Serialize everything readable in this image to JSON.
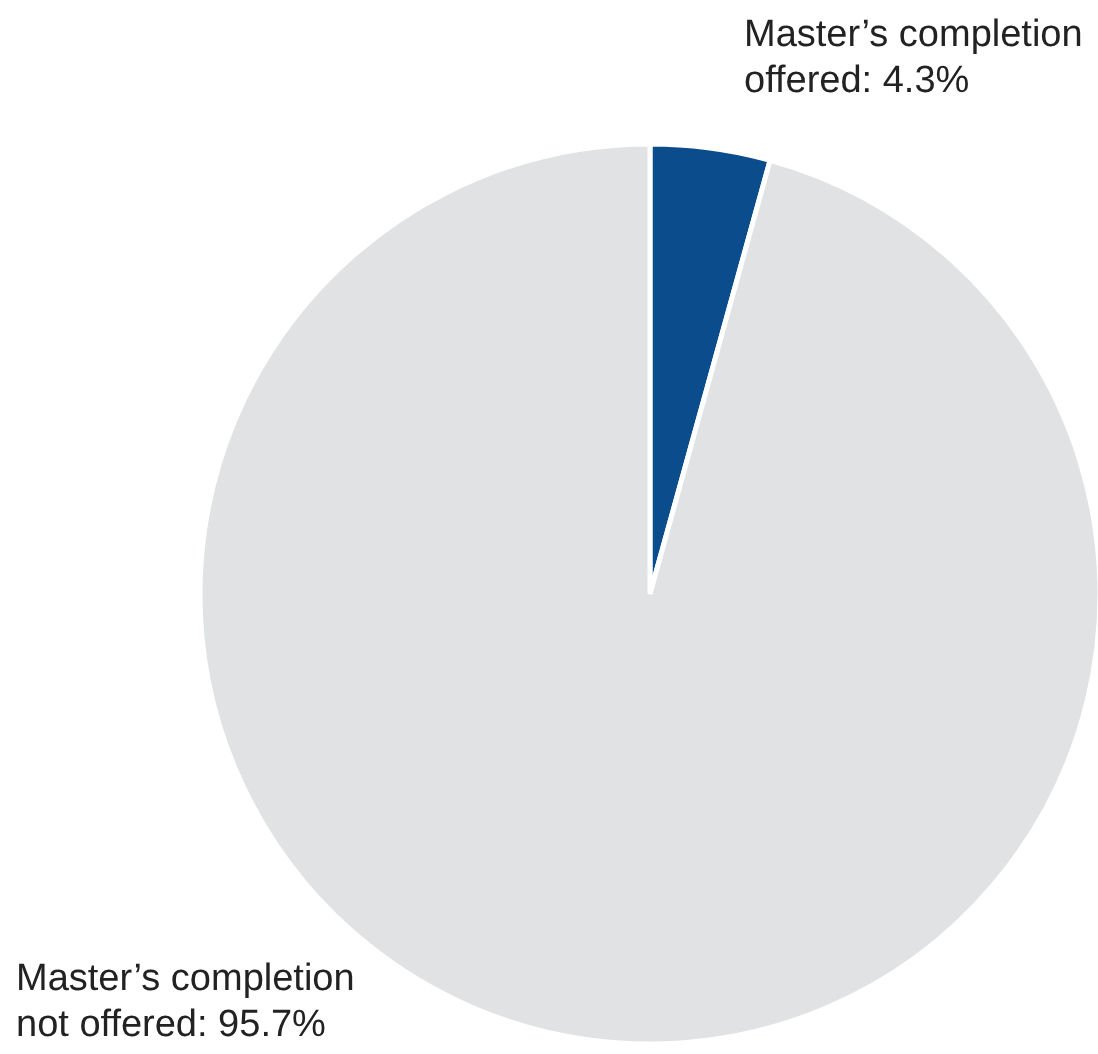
{
  "chart_data": {
    "type": "pie",
    "categories": [
      "Master’s completion\noffered",
      "Master’s completion\nnot offered"
    ],
    "values": [
      4.3,
      95.7
    ],
    "value_labels": [
      "4.3%",
      "95.7%"
    ],
    "colors": [
      "#0b4c8c",
      "#e1e2e4"
    ]
  }
}
